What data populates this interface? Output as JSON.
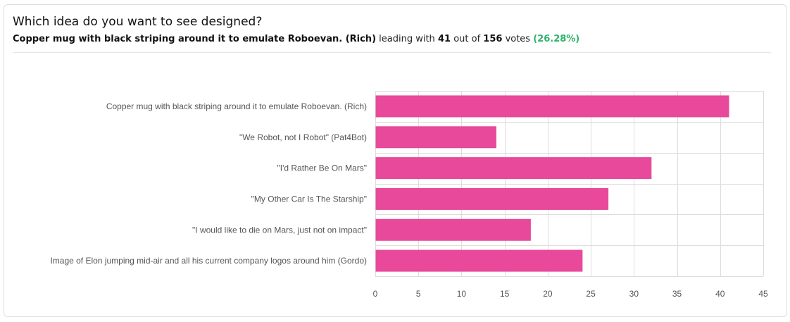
{
  "poll": {
    "question": "Which idea do you want to see designed?",
    "leader": "Copper mug with black striping around it to emulate Roboevan. (Rich)",
    "leading_with_text": "leading with",
    "leader_votes": "41",
    "out_of_text": "out of",
    "total_votes": "156",
    "votes_text": "votes",
    "percent": "(26.28%)"
  },
  "colors": {
    "bar": "#e8499b",
    "percent": "#2db46b",
    "grid": "#dddddd"
  },
  "chart_data": {
    "type": "bar",
    "orientation": "horizontal",
    "categories": [
      "Copper mug with black striping around it to emulate Roboevan. (Rich)",
      "\"We Robot, not I Robot\" (Pat4Bot)",
      "\"I'd Rather Be On Mars\"",
      "\"My Other Car Is The Starship\"",
      "\"I would like to die on Mars, just not on impact\"",
      "Image of Elon jumping mid-air and all his current company logos around him (Gordo)"
    ],
    "values": [
      41,
      14,
      32,
      27,
      18,
      24
    ],
    "xlim": [
      0,
      45
    ],
    "xticks": [
      0,
      5,
      10,
      15,
      20,
      25,
      30,
      35,
      40,
      45
    ],
    "grid": true,
    "legend": "none"
  }
}
